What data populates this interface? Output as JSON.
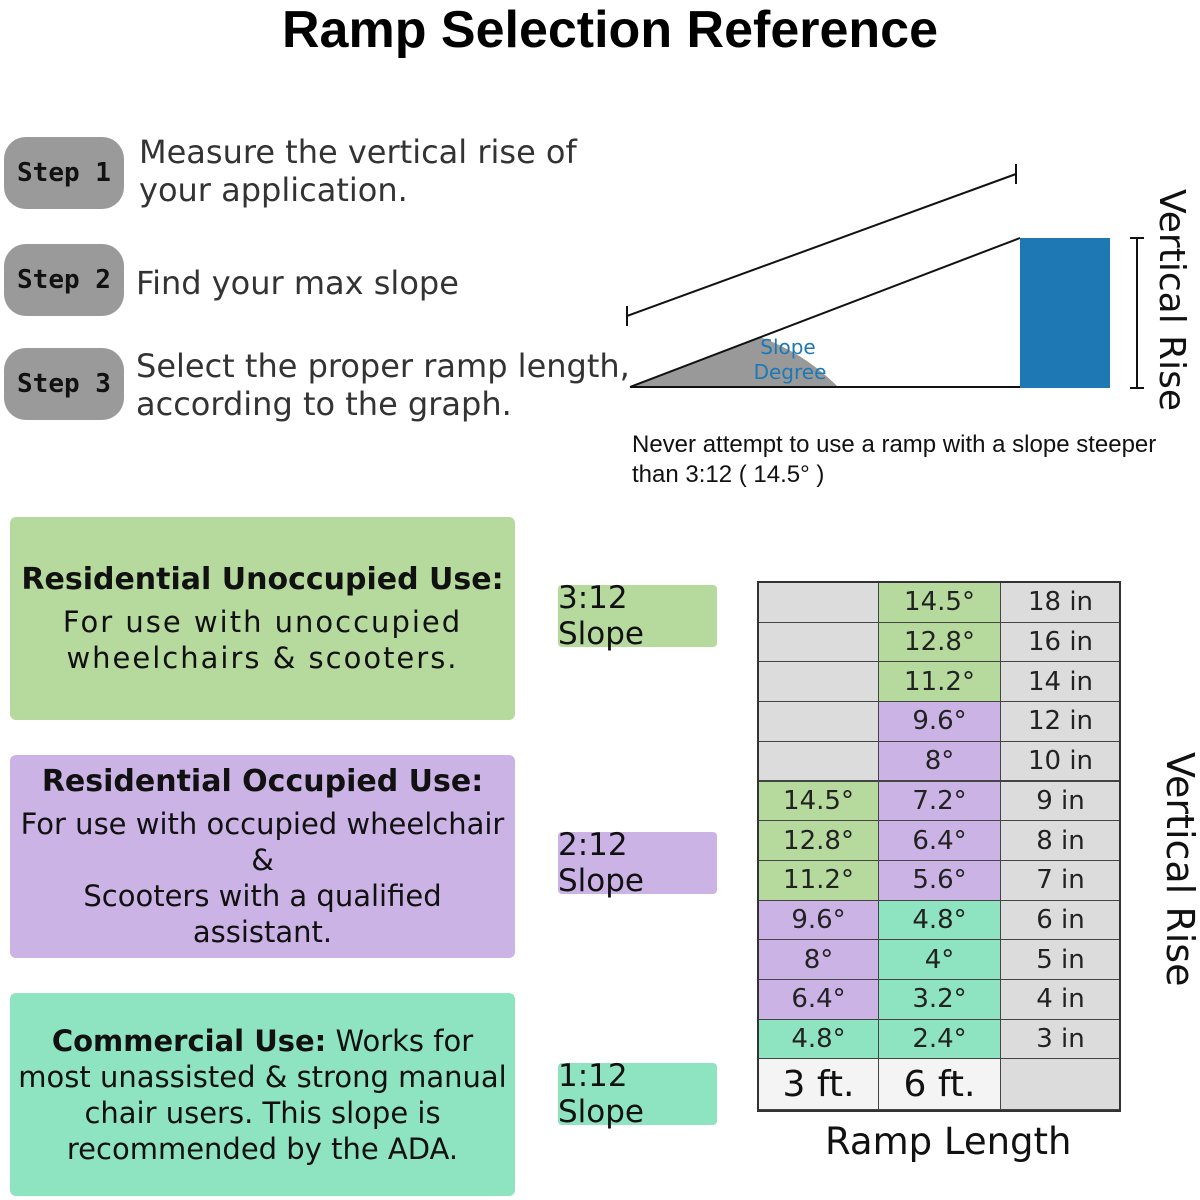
{
  "header": {
    "title": "Ramp Selection Reference"
  },
  "steps": [
    {
      "label": "Step 1",
      "lines": [
        "Measure the vertical rise of",
        "your application."
      ]
    },
    {
      "label": "Step 2",
      "lines": [
        "Find your max slope"
      ]
    },
    {
      "label": "Step 3",
      "lines": [
        "Select the proper ramp length,",
        "according to the graph."
      ]
    }
  ],
  "diagram": {
    "angle_label": [
      "Slope",
      "Degree"
    ],
    "side_label": "Vertical Rise",
    "note": [
      "Never attempt to use a ramp with a slope steeper",
      "than 3:12 ( 14.5° )"
    ]
  },
  "uses": [
    {
      "title": "Residential Unoccupied Use:",
      "lines": [
        "For use with unoccupied",
        "wheelchairs & scooters."
      ],
      "slope": "3:12 Slope"
    },
    {
      "title": "Residential Occupied Use:",
      "lines": [
        "For use with occupied wheelchair &",
        "Scooters with a qualified assistant."
      ],
      "slope": "2:12 Slope"
    },
    {
      "title": "Commercial Use:",
      "lines": [
        "Works for",
        "most unassisted & strong manual",
        "chair users. This slope is",
        "recommended by the ADA."
      ],
      "slope": "1:12 Slope"
    }
  ],
  "table": {
    "rows": [
      [
        null,
        "14.5°",
        "18 in"
      ],
      [
        null,
        "12.8°",
        "16 in"
      ],
      [
        null,
        "11.2°",
        "14 in"
      ],
      [
        null,
        "9.6°",
        "12 in"
      ],
      [
        null,
        "8°",
        "10 in"
      ],
      [
        "14.5°",
        "7.2°",
        "9 in"
      ],
      [
        "12.8°",
        "6.4°",
        "8 in"
      ],
      [
        "11.2°",
        "5.6°",
        "7 in"
      ],
      [
        "9.6°",
        "4.8°",
        "6 in"
      ],
      [
        "8°",
        "4°",
        "5 in"
      ],
      [
        "6.4°",
        "3.2°",
        "4 in"
      ],
      [
        "4.8°",
        "2.4°",
        "3 in"
      ],
      [
        "3 ft.",
        "6 ft.",
        null
      ]
    ],
    "x_label": "Ramp Length",
    "y_label": "Vertical Rise"
  }
}
